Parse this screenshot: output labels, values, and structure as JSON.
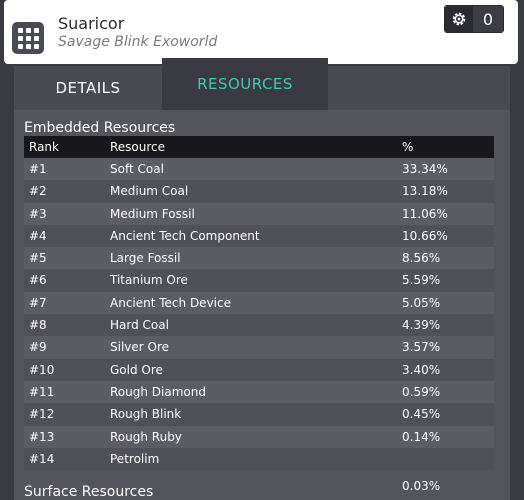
{
  "header": {
    "title": "Suaricor",
    "subtitle": "Savage Blink Exoworld",
    "count": "0"
  },
  "tabs": [
    {
      "label": "DETAILS"
    },
    {
      "label": "RESOURCES"
    }
  ],
  "embedded": {
    "section_title": "Embedded Resources",
    "columns": {
      "rank": "Rank",
      "resource": "Resource",
      "percent": "%"
    },
    "rows": [
      {
        "rank": "#1",
        "name": "Soft Coal",
        "pct": "33.34%"
      },
      {
        "rank": "#2",
        "name": "Medium Coal",
        "pct": "13.18%"
      },
      {
        "rank": "#3",
        "name": "Medium Fossil",
        "pct": "11.06%"
      },
      {
        "rank": "#4",
        "name": "Ancient Tech Component",
        "pct": "10.66%"
      },
      {
        "rank": "#5",
        "name": "Large Fossil",
        "pct": "8.56%"
      },
      {
        "rank": "#6",
        "name": "Titanium Ore",
        "pct": "5.59%"
      },
      {
        "rank": "#7",
        "name": "Ancient Tech Device",
        "pct": "5.05%"
      },
      {
        "rank": "#8",
        "name": "Hard Coal",
        "pct": "4.39%"
      },
      {
        "rank": "#9",
        "name": "Silver Ore",
        "pct": "3.57%"
      },
      {
        "rank": "#10",
        "name": "Gold Ore",
        "pct": "3.40%"
      },
      {
        "rank": "#11",
        "name": "Rough Diamond",
        "pct": "0.59%"
      },
      {
        "rank": "#12",
        "name": "Rough Blink",
        "pct": "0.45%"
      },
      {
        "rank": "#13",
        "name": "Rough Ruby",
        "pct": "0.14%"
      },
      {
        "rank": "#14",
        "name": "Petrolim",
        "pct": "0.03%"
      }
    ]
  },
  "surface": {
    "section_title": "Surface Resources"
  },
  "colors": {
    "accent": "#3cc9b2",
    "background": "#3a3a42",
    "panel": "#54545c",
    "header_bg": "#ffffff"
  },
  "icons": {
    "app": "grid-app-icon",
    "badge": "gear-icon"
  }
}
